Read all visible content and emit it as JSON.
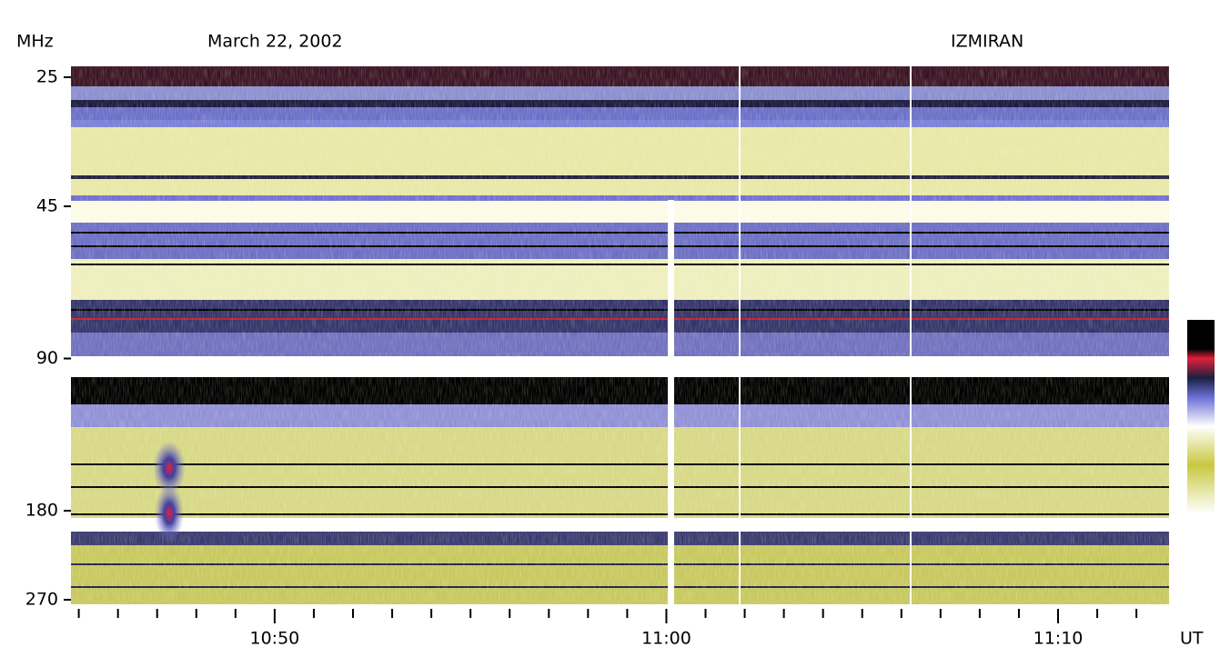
{
  "chart_data": {
    "type": "spectrogram",
    "title": "March 22, 2002",
    "annotation": "IZMIRAN",
    "ylabel": "MHz",
    "xlabel": "UT",
    "ylim": [
      25,
      270
    ],
    "yticks": [
      25,
      45,
      90,
      180,
      270
    ],
    "ylog": true,
    "xlim": [
      "10:44:48",
      "11:12:50"
    ],
    "xticks": [
      "10:50",
      "11:00",
      "11:10"
    ],
    "xminor_ticks": [
      "10:45",
      "10:46",
      "10:47",
      "10:48",
      "10:49",
      "10:51",
      "10:52",
      "10:53",
      "10:54",
      "10:55",
      "10:56",
      "10:57",
      "10:58",
      "10:59",
      "11:01",
      "11:02",
      "11:03",
      "11:04",
      "11:05",
      "11:06",
      "11:07",
      "11:08",
      "11:09",
      "11:11",
      "11:12"
    ]
  }
}
